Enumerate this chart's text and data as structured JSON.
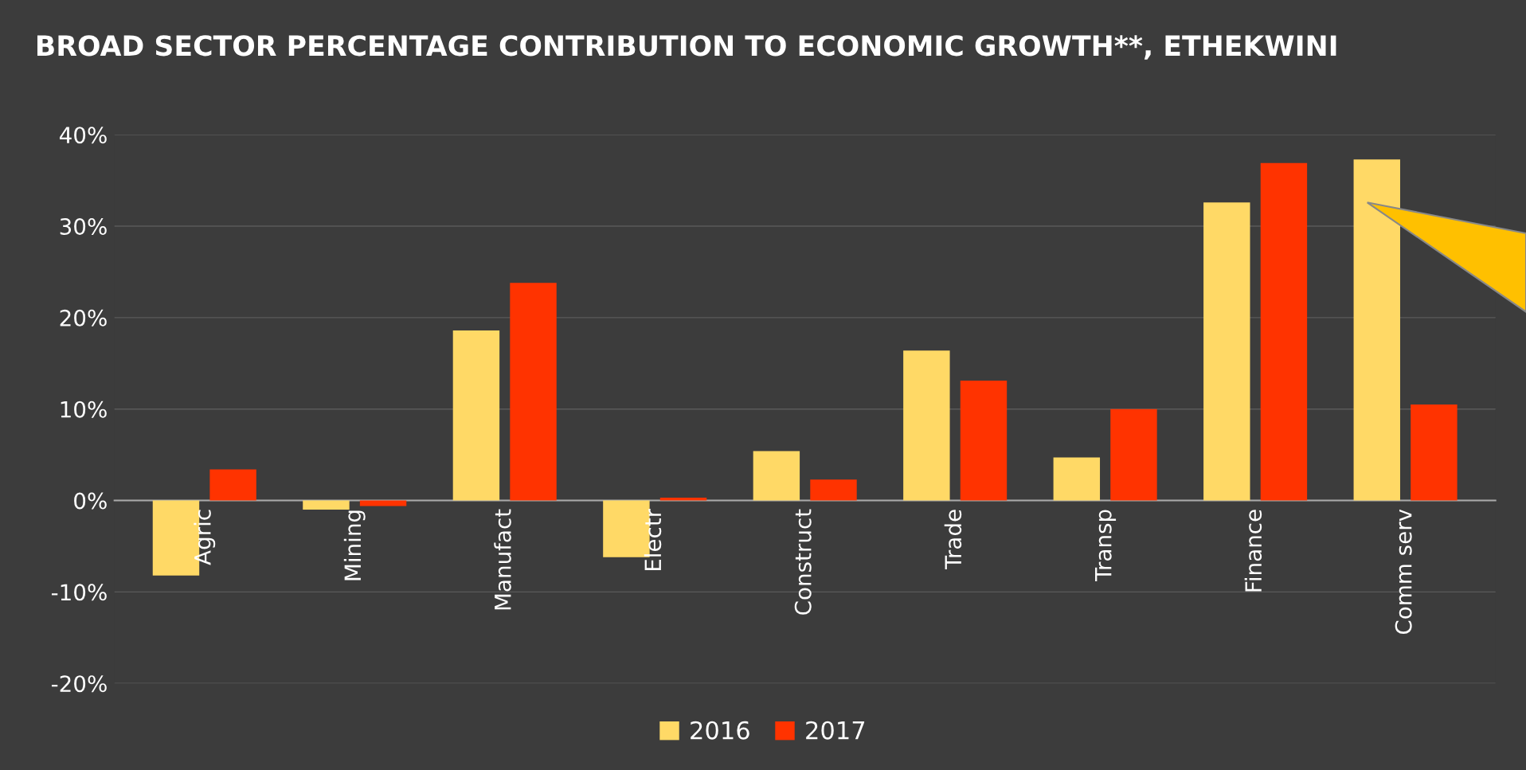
{
  "chart_data": {
    "type": "bar",
    "title": "BROAD SECTOR PERCENTAGE CONTRIBUTION TO ECONOMIC GROWTH**, ETHEKWINI",
    "categories": [
      "Agric",
      "Mining",
      "Manufact",
      "Electr",
      "Construct",
      "Trade",
      "Transp",
      "Finance",
      "Comm serv"
    ],
    "series": [
      {
        "name": "2016",
        "color": "#ffd966",
        "values": [
          -8.2,
          -1.0,
          18.6,
          -6.2,
          5.4,
          16.4,
          4.7,
          32.6,
          37.3
        ]
      },
      {
        "name": "2017",
        "color": "#ff3300",
        "values": [
          3.4,
          -0.6,
          23.8,
          0.3,
          2.3,
          13.1,
          10.0,
          36.9,
          10.5
        ]
      }
    ],
    "ylim": [
      -20,
      40
    ],
    "yticks": [
      {
        "value": -20,
        "label": "-20%"
      },
      {
        "value": -10,
        "label": "-10%"
      },
      {
        "value": 0,
        "label": "0%"
      },
      {
        "value": 10,
        "label": "10%"
      },
      {
        "value": 20,
        "label": "20%"
      },
      {
        "value": 30,
        "label": "30%"
      },
      {
        "value": 40,
        "label": "40%"
      }
    ],
    "grid": "y",
    "legend": "bottom"
  }
}
